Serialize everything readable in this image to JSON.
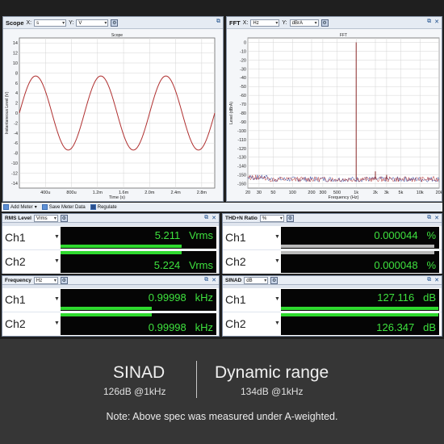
{
  "scope": {
    "title": "Scope",
    "x_label": "X:",
    "x_unit": "s",
    "y_label": "Y:",
    "y_unit": "V",
    "plot_title": "Scope"
  },
  "fft": {
    "title": "FFT",
    "x_label": "X:",
    "x_unit": "Hz",
    "y_label": "Y:",
    "y_unit": "dBrA",
    "plot_title": "FFT"
  },
  "toolbar": {
    "add_meter": "Add Meter",
    "save_meter_data": "Save Meter Data",
    "regulate": "Regulate"
  },
  "meters": {
    "rms": {
      "title": "RMS Level",
      "unit": "Vrms",
      "ch1_label": "Ch1",
      "ch1_value": "5.211",
      "ch1_unit": "Vrms",
      "ch2_label": "Ch2",
      "ch2_value": "5.224",
      "ch2_unit": "Vrms"
    },
    "thdn": {
      "title": "THD+N Ratio",
      "unit": "%",
      "ch1_label": "Ch1",
      "ch1_value": "0.000044",
      "ch1_unit": "%",
      "ch2_label": "Ch2",
      "ch2_value": "0.000048",
      "ch2_unit": "%"
    },
    "freq": {
      "title": "Frequency",
      "unit": "Hz",
      "ch1_label": "Ch1",
      "ch1_value": "0.99998",
      "ch1_unit": "kHz",
      "ch2_label": "Ch2",
      "ch2_value": "0.99998",
      "ch2_unit": "kHz"
    },
    "sinad": {
      "title": "SINAD",
      "unit": "dB",
      "ch1_label": "Ch1",
      "ch1_value": "127.116",
      "ch1_unit": "dB",
      "ch2_label": "Ch2",
      "ch2_value": "126.347",
      "ch2_unit": "dB"
    }
  },
  "banner": {
    "left_title": "SINAD",
    "left_sub": "126dB @1kHz",
    "right_title": "Dynamic range",
    "right_sub": "134dB @1kHz",
    "note": "Note: Above spec was measured under A-weighted."
  },
  "colors": {
    "meter_green": "#3ee23e",
    "trace_red": "#b03030",
    "bg": "#363636"
  },
  "chart_data": [
    {
      "type": "line",
      "title": "Scope",
      "xlabel": "Time (s)",
      "ylabel": "Instantaneous Level (V)",
      "xlim": [
        0,
        0.003
      ],
      "ylim": [
        -15,
        15
      ],
      "x_ticks": [
        "400u",
        "800u",
        "1.2m",
        "1.6m",
        "2.0m",
        "2.4m",
        "2.8m"
      ],
      "y_ticks": [
        "14",
        "12",
        "10",
        "8",
        "6",
        "4",
        "2",
        "0",
        "-2",
        "-4",
        "-6",
        "-8",
        "-10",
        "-12",
        "-14"
      ],
      "series": [
        {
          "amplitude_v": 7.4,
          "frequency_hz": 1000
        }
      ],
      "grid": true
    },
    {
      "type": "line",
      "title": "FFT",
      "xlabel": "Frequency (Hz)",
      "ylabel": "Level (dBrA)",
      "x_scale": "log",
      "xlim": [
        20,
        20000
      ],
      "ylim": [
        -165,
        5
      ],
      "x_ticks": [
        "20",
        "30",
        "50",
        "100",
        "200",
        "300",
        "500",
        "1k",
        "2k",
        "3k",
        "5k",
        "10k",
        "20k"
      ],
      "y_ticks": [
        "0",
        "-10",
        "-20",
        "-30",
        "-40",
        "-50",
        "-60",
        "-70",
        "-80",
        "-90",
        "-100",
        "-110",
        "-120",
        "-130",
        "-140",
        "-150",
        "-160"
      ],
      "peaks": [
        {
          "freq_hz": 1000,
          "level_db": 0
        },
        {
          "freq_hz": 2000,
          "level_db": -146
        },
        {
          "freq_hz": 3000,
          "level_db": -150
        }
      ],
      "noise_floor_db": -155,
      "grid": true
    }
  ]
}
